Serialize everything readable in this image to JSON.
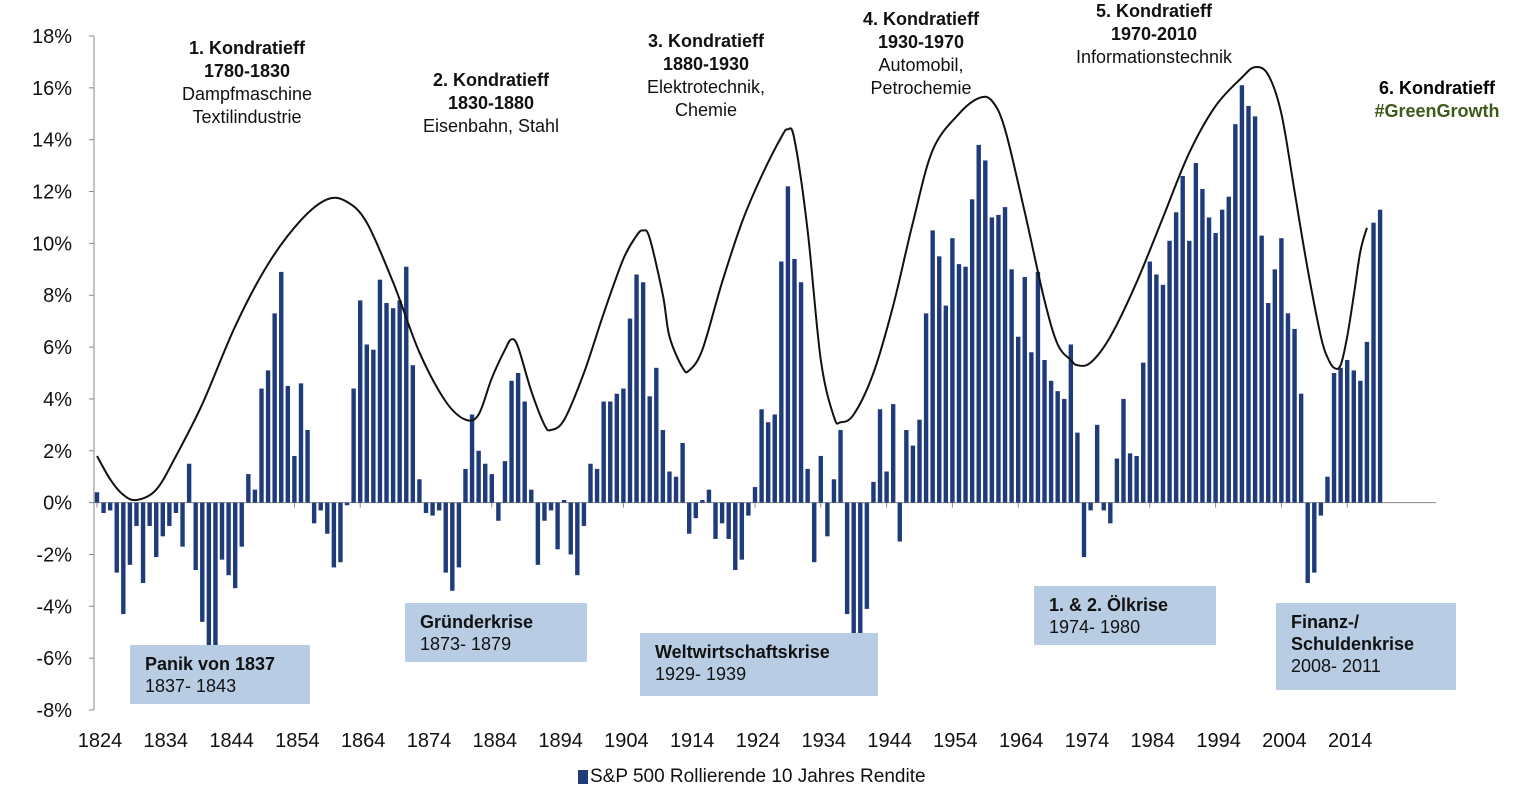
{
  "chart_data": {
    "type": "bar",
    "x_start": 1824,
    "x_end": 2018,
    "ylim": [
      -8,
      18
    ],
    "yticks": [
      18,
      16,
      14,
      12,
      10,
      8,
      6,
      4,
      2,
      0,
      -2,
      -4,
      -6,
      -8
    ],
    "xticks": [
      1824,
      1834,
      1844,
      1854,
      1864,
      1874,
      1884,
      1894,
      1904,
      1914,
      1924,
      1934,
      1944,
      1954,
      1964,
      1974,
      1984,
      1994,
      2004,
      2014
    ],
    "bar_color": "#1f3b7a",
    "curve_color": "#111111",
    "series": [
      {
        "name": "S&P 500 Rollierende 10 Jahres Rendite",
        "values": [
          0.4,
          -0.4,
          -0.3,
          -2.7,
          -4.3,
          -2.4,
          -0.9,
          -3.1,
          -0.9,
          -2.1,
          -1.3,
          -0.9,
          -0.4,
          -1.7,
          1.5,
          -2.6,
          -4.6,
          -5.5,
          -5.5,
          -2.2,
          -2.8,
          -3.3,
          -1.7,
          1.1,
          0.5,
          4.4,
          5.1,
          7.3,
          8.9,
          4.5,
          1.8,
          4.6,
          2.8,
          -0.8,
          -0.3,
          -1.2,
          -2.5,
          -2.3,
          -0.1,
          4.4,
          7.8,
          6.1,
          5.9,
          8.6,
          7.7,
          7.5,
          7.8,
          9.1,
          5.3,
          0.9,
          -0.4,
          -0.5,
          -0.3,
          -2.7,
          -3.4,
          -2.5,
          1.3,
          3.4,
          2.0,
          1.5,
          1.1,
          -0.7,
          1.6,
          4.7,
          5.0,
          3.9,
          0.5,
          -2.4,
          -0.7,
          -0.3,
          -1.8,
          0.1,
          -2.0,
          -2.8,
          -0.9,
          1.5,
          1.3,
          3.9,
          3.9,
          4.2,
          4.4,
          7.1,
          8.8,
          8.5,
          4.1,
          5.2,
          2.8,
          1.2,
          1.0,
          2.3,
          -1.2,
          -0.6,
          0.1,
          0.5,
          -1.4,
          -0.8,
          -1.4,
          -2.6,
          -2.2,
          -0.5,
          0.6,
          3.6,
          3.1,
          3.4,
          9.3,
          12.2,
          9.4,
          8.5,
          1.3,
          -2.3,
          1.8,
          -1.3,
          0.9,
          2.8,
          -4.3,
          -5.1,
          -5.6,
          -4.1,
          0.8,
          3.6,
          1.2,
          3.8,
          -1.5,
          2.8,
          2.2,
          3.2,
          7.3,
          10.5,
          9.5,
          7.6,
          10.2,
          9.2,
          9.1,
          11.7,
          13.8,
          13.2,
          11.0,
          11.1,
          11.4,
          9.0,
          6.4,
          8.7,
          5.8,
          8.9,
          5.5,
          4.7,
          4.3,
          4.0,
          6.1,
          2.7,
          -2.1,
          -0.3,
          3.0,
          -0.3,
          -0.8,
          1.7,
          4.0,
          1.9,
          1.8,
          5.4,
          9.3,
          8.8,
          8.4,
          10.1,
          11.2,
          12.6,
          10.1,
          13.1,
          12.1,
          11.0,
          10.4,
          11.3,
          11.8,
          14.6,
          16.1,
          15.3,
          14.9,
          10.3,
          7.7,
          9.0,
          10.2,
          7.3,
          6.7,
          4.2,
          -3.1,
          -2.7,
          -0.5,
          1.0,
          5.0,
          5.2,
          5.5,
          5.1,
          4.7,
          6.2,
          10.8,
          11.3
        ]
      }
    ],
    "curve_points": [
      [
        1824,
        1.8
      ],
      [
        1826,
        0.9
      ],
      [
        1828,
        0.3
      ],
      [
        1830,
        0.1
      ],
      [
        1833,
        0.5
      ],
      [
        1836,
        1.8
      ],
      [
        1840,
        3.8
      ],
      [
        1845,
        6.8
      ],
      [
        1850,
        9.2
      ],
      [
        1855,
        10.9
      ],
      [
        1859,
        11.7
      ],
      [
        1862,
        11.6
      ],
      [
        1865,
        10.8
      ],
      [
        1869,
        8.5
      ],
      [
        1873,
        5.8
      ],
      [
        1877,
        3.9
      ],
      [
        1880,
        3.2
      ],
      [
        1882,
        3.4
      ],
      [
        1884,
        4.8
      ],
      [
        1886,
        5.9
      ],
      [
        1887,
        6.3
      ],
      [
        1888,
        6.0
      ],
      [
        1890,
        4.3
      ],
      [
        1892,
        3.0
      ],
      [
        1893,
        2.8
      ],
      [
        1895,
        3.2
      ],
      [
        1898,
        5.0
      ],
      [
        1901,
        7.3
      ],
      [
        1904,
        9.4
      ],
      [
        1906,
        10.3
      ],
      [
        1907,
        10.5
      ],
      [
        1908,
        10.2
      ],
      [
        1910,
        8.0
      ],
      [
        1911,
        6.4
      ],
      [
        1913,
        5.2
      ],
      [
        1914,
        5.1
      ],
      [
        1916,
        5.9
      ],
      [
        1919,
        8.5
      ],
      [
        1922,
        10.8
      ],
      [
        1925,
        12.6
      ],
      [
        1928,
        14.1
      ],
      [
        1929,
        14.4
      ],
      [
        1930,
        14.0
      ],
      [
        1932,
        10.5
      ],
      [
        1934,
        5.5
      ],
      [
        1936,
        3.3
      ],
      [
        1937,
        3.1
      ],
      [
        1939,
        3.4
      ],
      [
        1942,
        5.0
      ],
      [
        1945,
        7.6
      ],
      [
        1948,
        10.8
      ],
      [
        1951,
        13.6
      ],
      [
        1955,
        15.0
      ],
      [
        1958,
        15.6
      ],
      [
        1960,
        15.5
      ],
      [
        1962,
        14.4
      ],
      [
        1965,
        11.2
      ],
      [
        1968,
        7.8
      ],
      [
        1970,
        6.1
      ],
      [
        1972,
        5.5
      ],
      [
        1973,
        5.3
      ],
      [
        1975,
        5.4
      ],
      [
        1978,
        6.4
      ],
      [
        1982,
        8.5
      ],
      [
        1986,
        11.0
      ],
      [
        1990,
        13.5
      ],
      [
        1994,
        15.3
      ],
      [
        1998,
        16.4
      ],
      [
        2000,
        16.8
      ],
      [
        2002,
        16.5
      ],
      [
        2004,
        15.0
      ],
      [
        2006,
        12.0
      ],
      [
        2008,
        9.0
      ],
      [
        2010,
        6.4
      ],
      [
        2011,
        5.6
      ],
      [
        2012,
        5.2
      ],
      [
        2013,
        5.3
      ],
      [
        2014,
        6.4
      ],
      [
        2015,
        8.0
      ],
      [
        2016,
        9.7
      ],
      [
        2017,
        10.6
      ]
    ]
  },
  "kondratieffs": [
    {
      "title": "1. Kondratieff",
      "years": "1780-1830",
      "lines": [
        "Dampfmaschine",
        "Textilindustrie"
      ]
    },
    {
      "title": "2. Kondratieff",
      "years": "1830-1880",
      "lines": [
        "Eisenbahn, Stahl"
      ]
    },
    {
      "title": "3. Kondratieff",
      "years": "1880-1930",
      "lines": [
        "Elektrotechnik,",
        "Chemie"
      ]
    },
    {
      "title": "4. Kondratieff",
      "years": "1930-1970",
      "lines": [
        "Automobil,",
        "Petrochemie"
      ]
    },
    {
      "title": "5. Kondratieff",
      "years": "1970-2010",
      "lines": [
        "Informationstechnik"
      ]
    },
    {
      "title": "6. Kondratieff",
      "years": "",
      "lines": [
        "#GreenGrowth"
      ]
    }
  ],
  "crises": [
    {
      "title": "Panik von 1837",
      "years": "1837- 1843"
    },
    {
      "title": "Gründerkrise",
      "years": "1873- 1879"
    },
    {
      "title": "Weltwirtschaftskrise",
      "years": "1929- 1939"
    },
    {
      "title": "1. & 2. Ölkrise",
      "years": "1974- 1980"
    },
    {
      "title": "Finanz-/ Schuldenkrise",
      "years": "2008- 2011"
    }
  ],
  "legend": {
    "label": "S&P 500 Rollierende 10 Jahres Rendite"
  }
}
